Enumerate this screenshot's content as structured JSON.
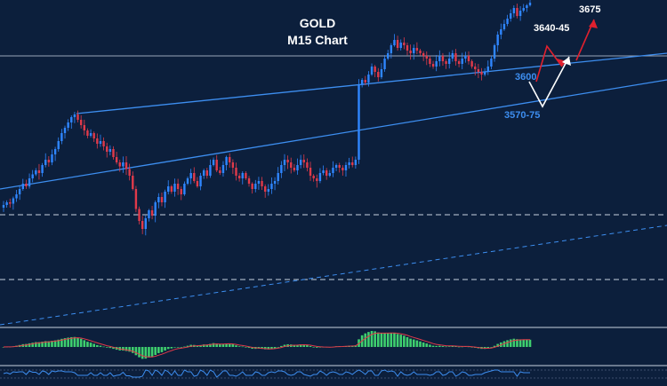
{
  "chart_data": {
    "type": "candlestick",
    "title": "GOLD",
    "subtitle": "M15 Chart",
    "instrument": "GOLD",
    "timeframe": "M15",
    "grid": false,
    "ylim": [
      3490,
      3690
    ],
    "colors": {
      "background": "#0c1f3c",
      "bullish": "#2f86ff",
      "bearish": "#e03a4a",
      "trendline": "#3d8ef0",
      "level_line": "#c9d3e0",
      "histogram": "#3ecf6e",
      "signal": "#e03a4a",
      "projection_up": "#e0202e",
      "projection_alt": "#ffffff",
      "label_blue": "#3d8ef0"
    },
    "candles_close": [
      3536,
      3538,
      3537,
      3541,
      3544,
      3548,
      3552,
      3550,
      3556,
      3559,
      3562,
      3560,
      3566,
      3570,
      3568,
      3574,
      3578,
      3584,
      3590,
      3594,
      3598,
      3602,
      3604,
      3600,
      3596,
      3592,
      3588,
      3590,
      3586,
      3582,
      3584,
      3580,
      3576,
      3578,
      3572,
      3568,
      3565,
      3568,
      3563,
      3558,
      3548,
      3533,
      3524,
      3518,
      3526,
      3532,
      3528,
      3538,
      3542,
      3538,
      3546,
      3550,
      3546,
      3552,
      3548,
      3544,
      3552,
      3556,
      3560,
      3554,
      3550,
      3558,
      3562,
      3558,
      3566,
      3570,
      3562,
      3560,
      3566,
      3572,
      3568,
      3564,
      3558,
      3556,
      3560,
      3556,
      3552,
      3548,
      3552,
      3554,
      3550,
      3546,
      3548,
      3552,
      3554,
      3560,
      3566,
      3570,
      3568,
      3564,
      3562,
      3566,
      3570,
      3568,
      3564,
      3558,
      3556,
      3554,
      3560,
      3562,
      3558,
      3560,
      3564,
      3566,
      3564,
      3562,
      3566,
      3568,
      3566,
      3570,
      3626,
      3630,
      3628,
      3634,
      3640,
      3636,
      3632,
      3638,
      3646,
      3650,
      3656,
      3660,
      3654,
      3658,
      3656,
      3652,
      3650,
      3654,
      3652,
      3650,
      3648,
      3646,
      3642,
      3640,
      3644,
      3648,
      3644,
      3642,
      3646,
      3650,
      3644,
      3642,
      3646,
      3648,
      3644,
      3640,
      3638,
      3636,
      3634,
      3636,
      3640,
      3646,
      3656,
      3664,
      3668,
      3672,
      3676,
      3680,
      3684,
      3678,
      3682,
      3684,
      3686,
      3688
    ],
    "annotations": [
      {
        "text": "3675",
        "price": 3675
      },
      {
        "text": "3640-45",
        "price": 3642
      },
      {
        "text": "3600",
        "price": 3600
      },
      {
        "text": "3570-75",
        "price": 3572
      }
    ],
    "indicators": [
      {
        "name": "histogram oscillator",
        "type": "histogram"
      },
      {
        "name": "lower oscillator",
        "type": "line"
      }
    ]
  }
}
